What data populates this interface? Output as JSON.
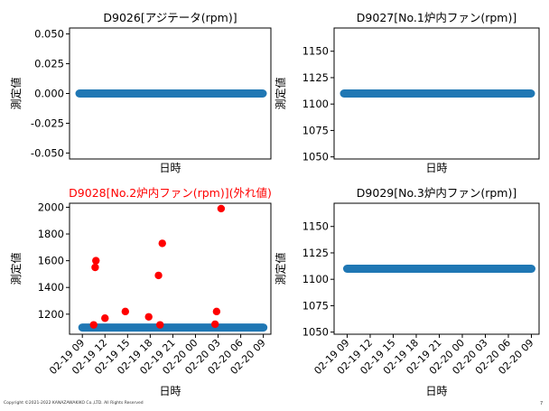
{
  "footer": {
    "copyright": "Copyright ©2021-2022 KANAZAWAKIKO Co.,LTD. All Rights Reserved",
    "page_number": "7"
  },
  "chart_data": [
    {
      "type": "scatter",
      "title": "D9026[アジテータ(rpm)]",
      "title_color": "#000000",
      "xlabel": "日時",
      "ylabel": "測定値",
      "ylim": [
        -0.055,
        0.055
      ],
      "yticks": [
        "0.050",
        "0.025",
        "0.000",
        "-0.025",
        "-0.050"
      ],
      "ytick_values": [
        0.05,
        0.025,
        0.0,
        -0.025,
        -0.05
      ],
      "xticks": [],
      "series": [
        {
          "color": "#1f77b4",
          "style": "band",
          "value": 0.0
        }
      ]
    },
    {
      "type": "scatter",
      "title": "D9027[No.1炉内ファン(rpm)]",
      "title_color": "#000000",
      "xlabel": "日時",
      "ylabel": "測定値",
      "ylim": [
        1048,
        1172
      ],
      "yticks": [
        "1150",
        "1125",
        "1100",
        "1075",
        "1050"
      ],
      "ytick_values": [
        1150,
        1125,
        1100,
        1075,
        1050
      ],
      "xticks": [],
      "series": [
        {
          "color": "#1f77b4",
          "style": "band",
          "value": 1110
        }
      ]
    },
    {
      "type": "scatter",
      "title": "D9028[No.2炉内ファン(rpm)](外れ値)",
      "title_color": "#ff0000",
      "xlabel": "日時",
      "ylabel": "測定値",
      "ylim": [
        1050,
        2030
      ],
      "yticks": [
        "2000",
        "1800",
        "1600",
        "1400",
        "1200"
      ],
      "ytick_values": [
        2000,
        1800,
        1600,
        1400,
        1200
      ],
      "xticks": [
        "02-19 09",
        "02-19 12",
        "02-19 15",
        "02-19 18",
        "02-19 21",
        "02-20 00",
        "02-20 03",
        "02-20 06",
        "02-20 09"
      ],
      "xtick_values": [
        9,
        12,
        15,
        18,
        21,
        24,
        27,
        30,
        33
      ],
      "xlim": [
        7.3,
        34.0
      ],
      "series": [
        {
          "color": "#1f77b4",
          "style": "band",
          "value": 1100,
          "x_range": [
            9.0,
            33.0
          ]
        },
        {
          "color": "#ff0000",
          "style": "points",
          "x": [
            10.5,
            10.7,
            10.8,
            12.0,
            14.7,
            17.8,
            19.1,
            19.3,
            19.6,
            26.6,
            26.8,
            27.4
          ],
          "y": [
            1120,
            1550,
            1600,
            1170,
            1220,
            1180,
            1490,
            1120,
            1730,
            1125,
            1220,
            1990
          ]
        }
      ]
    },
    {
      "type": "scatter",
      "title": "D9029[No.3炉内ファン(rpm)]",
      "title_color": "#000000",
      "xlabel": "日時",
      "ylabel": "測定値",
      "ylim": [
        1048,
        1172
      ],
      "yticks": [
        "1150",
        "1125",
        "1100",
        "1075",
        "1050"
      ],
      "ytick_values": [
        1150,
        1125,
        1100,
        1075,
        1050
      ],
      "xticks": [
        "02-19 09",
        "02-19 12",
        "02-19 15",
        "02-19 18",
        "02-19 21",
        "02-20 00",
        "02-20 03",
        "02-20 06",
        "02-20 09"
      ],
      "xtick_values": [
        9,
        12,
        15,
        18,
        21,
        24,
        27,
        30,
        33
      ],
      "xlim": [
        7.3,
        34.0
      ],
      "series": [
        {
          "color": "#1f77b4",
          "style": "band",
          "value": 1110,
          "x_range": [
            9.0,
            33.0
          ]
        }
      ]
    }
  ]
}
